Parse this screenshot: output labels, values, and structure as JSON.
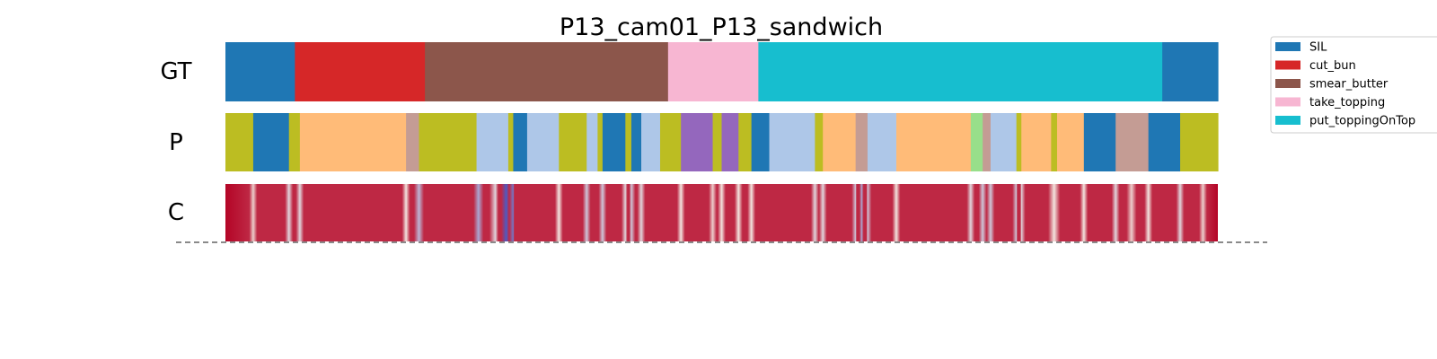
{
  "chart_data": {
    "type": "heatmap",
    "title": "P13_cam01_P13_sandwich",
    "x_range": [
      0,
      1
    ],
    "rows": [
      {
        "label": "GT"
      },
      {
        "label": "P"
      },
      {
        "label": "C"
      }
    ],
    "legend": {
      "placement": "top-right",
      "entries": [
        {
          "label": "SIL",
          "color": "#1f77b4"
        },
        {
          "label": "cut_bun",
          "color": "#d62728"
        },
        {
          "label": "smear_butter",
          "color": "#8c564b"
        },
        {
          "label": "take_topping",
          "color": "#f7b6d2"
        },
        {
          "label": "put_toppingOnTop",
          "color": "#17becf"
        }
      ]
    },
    "gt_segments": [
      {
        "start": 0.0,
        "end": 0.07,
        "color": "#1f77b4"
      },
      {
        "start": 0.07,
        "end": 0.201,
        "color": "#d62728"
      },
      {
        "start": 0.201,
        "end": 0.446,
        "color": "#8c564b"
      },
      {
        "start": 0.446,
        "end": 0.537,
        "color": "#f7b6d2"
      },
      {
        "start": 0.537,
        "end": 0.944,
        "color": "#17becf"
      },
      {
        "start": 0.944,
        "end": 1.0,
        "color": "#1f77b4"
      }
    ],
    "pred_segments": [
      {
        "start": 0.0,
        "end": 0.028,
        "color": "#bcbd22"
      },
      {
        "start": 0.028,
        "end": 0.064,
        "color": "#1f77b4"
      },
      {
        "start": 0.064,
        "end": 0.075,
        "color": "#bcbd22"
      },
      {
        "start": 0.075,
        "end": 0.182,
        "color": "#ffbb78"
      },
      {
        "start": 0.182,
        "end": 0.195,
        "color": "#c49c94"
      },
      {
        "start": 0.195,
        "end": 0.253,
        "color": "#bcbd22"
      },
      {
        "start": 0.253,
        "end": 0.285,
        "color": "#aec7e8"
      },
      {
        "start": 0.285,
        "end": 0.29,
        "color": "#bcbd22"
      },
      {
        "start": 0.29,
        "end": 0.304,
        "color": "#1f77b4"
      },
      {
        "start": 0.304,
        "end": 0.336,
        "color": "#aec7e8"
      },
      {
        "start": 0.336,
        "end": 0.364,
        "color": "#bcbd22"
      },
      {
        "start": 0.364,
        "end": 0.375,
        "color": "#aec7e8"
      },
      {
        "start": 0.375,
        "end": 0.38,
        "color": "#bcbd22"
      },
      {
        "start": 0.38,
        "end": 0.403,
        "color": "#1f77b4"
      },
      {
        "start": 0.403,
        "end": 0.409,
        "color": "#bcbd22"
      },
      {
        "start": 0.409,
        "end": 0.419,
        "color": "#1f77b4"
      },
      {
        "start": 0.419,
        "end": 0.438,
        "color": "#aec7e8"
      },
      {
        "start": 0.438,
        "end": 0.459,
        "color": "#bcbd22"
      },
      {
        "start": 0.459,
        "end": 0.491,
        "color": "#9467bd"
      },
      {
        "start": 0.491,
        "end": 0.5,
        "color": "#bcbd22"
      },
      {
        "start": 0.5,
        "end": 0.517,
        "color": "#9467bd"
      },
      {
        "start": 0.517,
        "end": 0.53,
        "color": "#bcbd22"
      },
      {
        "start": 0.53,
        "end": 0.548,
        "color": "#1f77b4"
      },
      {
        "start": 0.548,
        "end": 0.594,
        "color": "#aec7e8"
      },
      {
        "start": 0.594,
        "end": 0.602,
        "color": "#bcbd22"
      },
      {
        "start": 0.602,
        "end": 0.635,
        "color": "#ffbb78"
      },
      {
        "start": 0.635,
        "end": 0.647,
        "color": "#c49c94"
      },
      {
        "start": 0.647,
        "end": 0.676,
        "color": "#aec7e8"
      },
      {
        "start": 0.676,
        "end": 0.751,
        "color": "#ffbb78"
      },
      {
        "start": 0.751,
        "end": 0.763,
        "color": "#98df8a"
      },
      {
        "start": 0.763,
        "end": 0.771,
        "color": "#c49c94"
      },
      {
        "start": 0.771,
        "end": 0.797,
        "color": "#aec7e8"
      },
      {
        "start": 0.797,
        "end": 0.802,
        "color": "#bcbd22"
      },
      {
        "start": 0.802,
        "end": 0.832,
        "color": "#ffbb78"
      },
      {
        "start": 0.832,
        "end": 0.838,
        "color": "#bcbd22"
      },
      {
        "start": 0.838,
        "end": 0.865,
        "color": "#ffbb78"
      },
      {
        "start": 0.865,
        "end": 0.897,
        "color": "#1f77b4"
      },
      {
        "start": 0.897,
        "end": 0.93,
        "color": "#c49c94"
      },
      {
        "start": 0.93,
        "end": 0.962,
        "color": "#1f77b4"
      },
      {
        "start": 0.962,
        "end": 1.0,
        "color": "#bcbd22"
      }
    ],
    "confidence_base_color": "#b40426",
    "confidence_dips": [
      {
        "at": 0.028,
        "level": 0.55,
        "width": 0.004
      },
      {
        "at": 0.064,
        "level": 0.45,
        "width": 0.004
      },
      {
        "at": 0.075,
        "level": 0.45,
        "width": 0.004
      },
      {
        "at": 0.182,
        "level": 0.5,
        "width": 0.004
      },
      {
        "at": 0.195,
        "level": 0.35,
        "width": 0.005
      },
      {
        "at": 0.255,
        "level": 0.3,
        "width": 0.005
      },
      {
        "at": 0.272,
        "level": 0.45,
        "width": 0.006
      },
      {
        "at": 0.283,
        "level": 0.05,
        "width": 0.008
      },
      {
        "at": 0.29,
        "level": 0.15,
        "width": 0.004
      },
      {
        "at": 0.336,
        "level": 0.5,
        "width": 0.004
      },
      {
        "at": 0.364,
        "level": 0.4,
        "width": 0.004
      },
      {
        "at": 0.38,
        "level": 0.4,
        "width": 0.004
      },
      {
        "at": 0.403,
        "level": 0.45,
        "width": 0.004
      },
      {
        "at": 0.409,
        "level": 0.4,
        "width": 0.004
      },
      {
        "at": 0.419,
        "level": 0.45,
        "width": 0.004
      },
      {
        "at": 0.459,
        "level": 0.5,
        "width": 0.004
      },
      {
        "at": 0.491,
        "level": 0.55,
        "width": 0.004
      },
      {
        "at": 0.5,
        "level": 0.5,
        "width": 0.004
      },
      {
        "at": 0.517,
        "level": 0.5,
        "width": 0.004
      },
      {
        "at": 0.53,
        "level": 0.5,
        "width": 0.004
      },
      {
        "at": 0.594,
        "level": 0.45,
        "width": 0.004
      },
      {
        "at": 0.602,
        "level": 0.45,
        "width": 0.004
      },
      {
        "at": 0.635,
        "level": 0.4,
        "width": 0.004
      },
      {
        "at": 0.641,
        "level": 0.3,
        "width": 0.005
      },
      {
        "at": 0.647,
        "level": 0.4,
        "width": 0.004
      },
      {
        "at": 0.676,
        "level": 0.5,
        "width": 0.004
      },
      {
        "at": 0.751,
        "level": 0.45,
        "width": 0.004
      },
      {
        "at": 0.763,
        "level": 0.4,
        "width": 0.004
      },
      {
        "at": 0.771,
        "level": 0.4,
        "width": 0.004
      },
      {
        "at": 0.797,
        "level": 0.4,
        "width": 0.004
      },
      {
        "at": 0.802,
        "level": 0.45,
        "width": 0.004
      },
      {
        "at": 0.835,
        "level": 0.5,
        "width": 0.006
      },
      {
        "at": 0.865,
        "level": 0.5,
        "width": 0.004
      },
      {
        "at": 0.897,
        "level": 0.45,
        "width": 0.004
      },
      {
        "at": 0.913,
        "level": 0.55,
        "width": 0.005
      },
      {
        "at": 0.93,
        "level": 0.5,
        "width": 0.004
      },
      {
        "at": 0.962,
        "level": 0.45,
        "width": 0.004
      },
      {
        "at": 0.985,
        "level": 0.55,
        "width": 0.004
      }
    ]
  }
}
